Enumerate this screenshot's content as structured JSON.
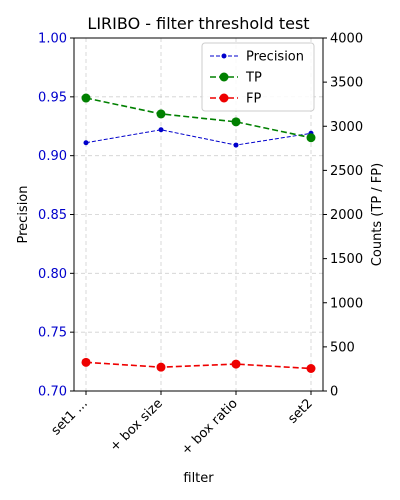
{
  "chart_data": {
    "type": "line",
    "title": "LIRIBO - filter threshold test",
    "xlabel": "filter",
    "ylabel_left": "Precision",
    "ylabel_right": "Counts (TP / FP)",
    "categories": [
      "set1 ...",
      "+ box size",
      "+ box ratio",
      "set2"
    ],
    "y_left": {
      "lim": [
        0.7,
        1.0
      ],
      "ticks": [
        0.7,
        0.75,
        0.8,
        0.85,
        0.9,
        0.95,
        1.0
      ],
      "tick_labels": [
        "0.70",
        "0.75",
        "0.80",
        "0.85",
        "0.90",
        "0.95",
        "1.00"
      ],
      "color": "#0000cc"
    },
    "y_right": {
      "lim": [
        0,
        4000
      ],
      "ticks": [
        0,
        500,
        1000,
        1500,
        2000,
        2500,
        3000,
        3500,
        4000
      ],
      "tick_labels": [
        "0",
        "500",
        "1000",
        "1500",
        "2000",
        "2500",
        "3000",
        "3500",
        "4000"
      ]
    },
    "grid": true,
    "legend_position": "top-right",
    "series": [
      {
        "name": "Precision",
        "axis": "left",
        "values": [
          0.911,
          0.922,
          0.909,
          0.919
        ],
        "color": "#0000cc",
        "linestyle": "dashed",
        "marker": "small-dot"
      },
      {
        "name": "TP",
        "axis": "right",
        "values": [
          3320,
          3140,
          3050,
          2870
        ],
        "color": "#008000",
        "linestyle": "dashed",
        "marker": "dot"
      },
      {
        "name": "FP",
        "axis": "right",
        "values": [
          325,
          270,
          305,
          255
        ],
        "color": "#ee0000",
        "linestyle": "dashed",
        "marker": "dot"
      }
    ]
  }
}
